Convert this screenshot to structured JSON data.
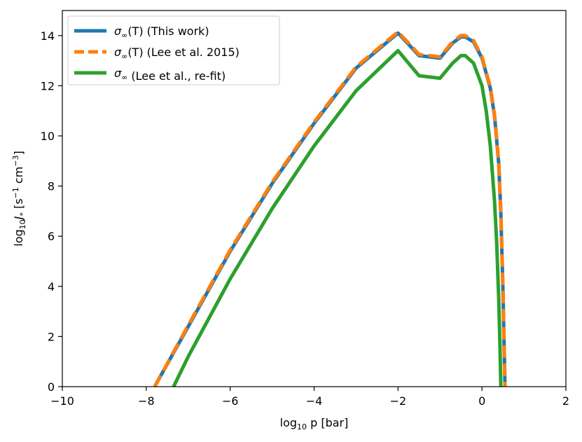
{
  "chart_data": {
    "type": "line",
    "title": "",
    "xlabel": {
      "base": "log",
      "sub": "10",
      "rest": " p [bar]"
    },
    "ylabel": {
      "base": "log",
      "sub": "10",
      "var": "J",
      "varsub": "*",
      "unit_open": " [s",
      "exp1": "−1",
      "mid": " cm",
      "exp2": "−3",
      "unit_close": "]"
    },
    "xlim": [
      -10,
      2
    ],
    "ylim": [
      0,
      15
    ],
    "xticks": [
      -10,
      -8,
      -6,
      -4,
      -2,
      0,
      2
    ],
    "yticks": [
      0,
      2,
      4,
      6,
      8,
      10,
      12,
      14
    ],
    "xtick_labels": [
      "−10",
      "−8",
      "−6",
      "−4",
      "−2",
      "0",
      "2"
    ],
    "ytick_labels": [
      "0",
      "2",
      "4",
      "6",
      "8",
      "10",
      "12",
      "14"
    ],
    "grid": false,
    "legend_position": "top-left",
    "series": [
      {
        "name": "σ∞(T) (This work)",
        "label_parts": {
          "sym": "σ",
          "sub": "∞",
          "arg": "(T)",
          "text": " (This work)"
        },
        "color": "#1f77b4",
        "style": "solid",
        "x": [
          -7.8,
          -7.0,
          -6.0,
          -5.0,
          -4.0,
          -3.0,
          -2.0,
          -1.5,
          -1.0,
          -0.7,
          -0.5,
          -0.4,
          -0.2,
          0.0,
          0.2,
          0.3,
          0.4,
          0.45,
          0.5,
          0.53,
          0.55
        ],
        "y": [
          0.0,
          2.4,
          5.4,
          8.1,
          10.5,
          12.7,
          14.1,
          13.2,
          13.1,
          13.7,
          13.95,
          13.95,
          13.75,
          13.1,
          11.9,
          10.8,
          8.9,
          6.9,
          3.9,
          1.5,
          0.0
        ]
      },
      {
        "name": "σ∞(T) (Lee et al. 2015)",
        "label_parts": {
          "sym": "σ",
          "sub": "∞",
          "arg": "(T)",
          "text": " (Lee et al. 2015)"
        },
        "color": "#ff7f0e",
        "style": "dashed",
        "x": [
          -7.8,
          -7.0,
          -6.0,
          -5.0,
          -4.0,
          -3.0,
          -2.0,
          -1.5,
          -1.0,
          -0.7,
          -0.5,
          -0.4,
          -0.2,
          0.0,
          0.2,
          0.3,
          0.4,
          0.45,
          0.5,
          0.53,
          0.55
        ],
        "y": [
          0.0,
          2.45,
          5.45,
          8.15,
          10.55,
          12.75,
          14.15,
          13.25,
          13.15,
          13.75,
          14.0,
          14.0,
          13.8,
          13.15,
          11.95,
          10.85,
          8.95,
          6.95,
          3.95,
          1.5,
          0.0
        ]
      },
      {
        "name": "σ∞ (Lee et al., re-fit)",
        "label_parts": {
          "sym": "σ",
          "sub": "∞",
          "arg": "",
          "text": " (Lee et al., re-fit)"
        },
        "color": "#2ca02c",
        "style": "solid",
        "x": [
          -7.35,
          -7.0,
          -6.0,
          -5.0,
          -4.0,
          -3.0,
          -2.0,
          -1.5,
          -1.0,
          -0.7,
          -0.5,
          -0.4,
          -0.2,
          0.0,
          0.1,
          0.2,
          0.3,
          0.35,
          0.4,
          0.43,
          0.45
        ],
        "y": [
          0.0,
          1.2,
          4.3,
          7.1,
          9.6,
          11.8,
          13.4,
          12.4,
          12.3,
          12.9,
          13.2,
          13.2,
          12.9,
          12.0,
          11.0,
          9.6,
          7.4,
          5.8,
          3.5,
          1.6,
          0.0
        ]
      }
    ]
  }
}
